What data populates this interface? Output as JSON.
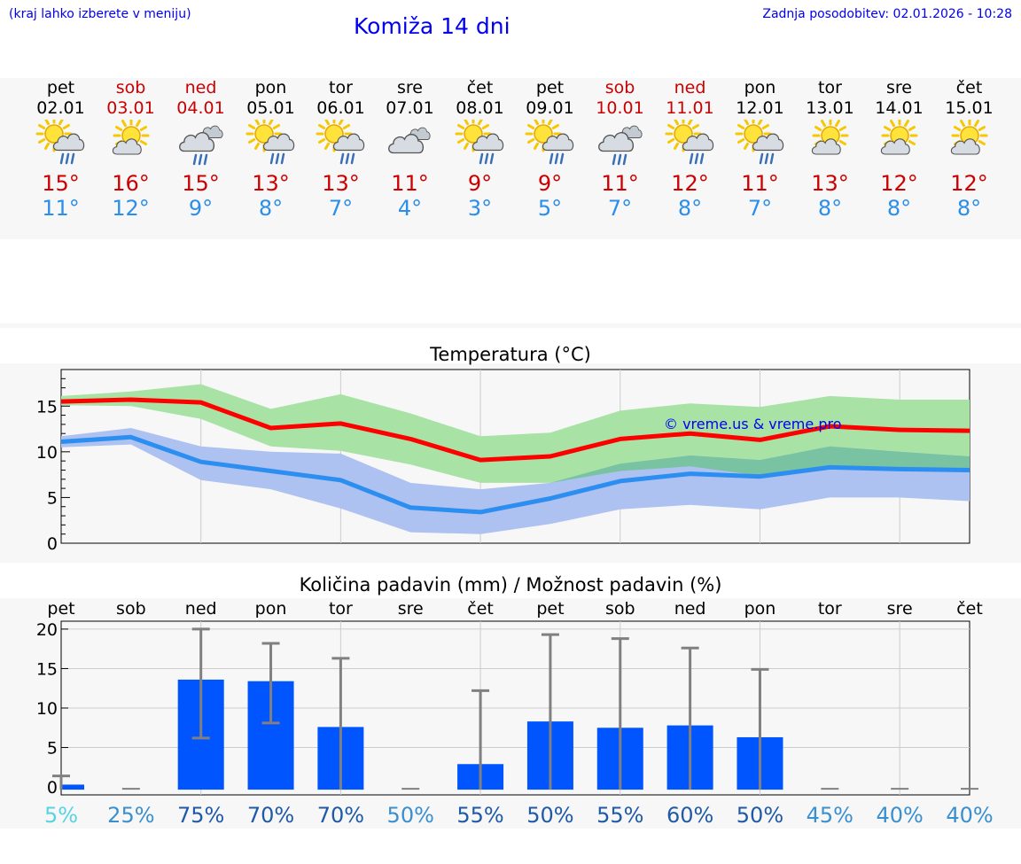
{
  "header": {
    "hint": "(kraj lahko izberete v meniju)",
    "title": "Komiža 14 dni",
    "updated": "Zadnja posodobitev: 02.01.2026 - 10:28"
  },
  "days": [
    {
      "name": "pet",
      "date": "02.01",
      "weekend": false,
      "icon": "sun-cloud-rain-icon",
      "tmax": "15°",
      "tmin": "11°"
    },
    {
      "name": "sob",
      "date": "03.01",
      "weekend": true,
      "icon": "sun-cloud-icon",
      "tmax": "16°",
      "tmin": "12°"
    },
    {
      "name": "ned",
      "date": "04.01",
      "weekend": true,
      "icon": "cloud-rain-icon",
      "tmax": "15°",
      "tmin": "9°"
    },
    {
      "name": "pon",
      "date": "05.01",
      "weekend": false,
      "icon": "sun-cloud-rain-icon",
      "tmax": "13°",
      "tmin": "8°"
    },
    {
      "name": "tor",
      "date": "06.01",
      "weekend": false,
      "icon": "sun-cloud-rain-icon",
      "tmax": "13°",
      "tmin": "7°"
    },
    {
      "name": "sre",
      "date": "07.01",
      "weekend": false,
      "icon": "cloud-icon",
      "tmax": "11°",
      "tmin": "4°"
    },
    {
      "name": "čet",
      "date": "08.01",
      "weekend": false,
      "icon": "sun-cloud-rain-icon",
      "tmax": "9°",
      "tmin": "3°"
    },
    {
      "name": "pet",
      "date": "09.01",
      "weekend": false,
      "icon": "sun-cloud-rain-icon",
      "tmax": "9°",
      "tmin": "5°"
    },
    {
      "name": "sob",
      "date": "10.01",
      "weekend": true,
      "icon": "cloud-rain-icon",
      "tmax": "11°",
      "tmin": "7°"
    },
    {
      "name": "ned",
      "date": "11.01",
      "weekend": true,
      "icon": "sun-cloud-rain-icon",
      "tmax": "12°",
      "tmin": "8°"
    },
    {
      "name": "pon",
      "date": "12.01",
      "weekend": false,
      "icon": "sun-cloud-rain-icon",
      "tmax": "11°",
      "tmin": "7°"
    },
    {
      "name": "tor",
      "date": "13.01",
      "weekend": false,
      "icon": "sun-cloud-icon",
      "tmax": "13°",
      "tmin": "8°"
    },
    {
      "name": "sre",
      "date": "14.01",
      "weekend": false,
      "icon": "sun-cloud-icon",
      "tmax": "12°",
      "tmin": "8°"
    },
    {
      "name": "čet",
      "date": "15.01",
      "weekend": false,
      "icon": "sun-cloud-icon",
      "tmax": "12°",
      "tmin": "8°"
    }
  ],
  "colors": {
    "max_line": "#ff0000",
    "min_line": "#2b8ef0",
    "max_band": "#a8e3a5",
    "min_band": "#adc2f0",
    "overlap_band": "#79c2a2",
    "bar": "#0055ff",
    "whisker": "#808080",
    "grid": "#cccccc"
  },
  "chart_data": [
    {
      "type": "line",
      "title": "Temperatura (°C)",
      "watermark": "© vreme.us & vreme.pro",
      "x": [
        0,
        1,
        2,
        3,
        4,
        5,
        6,
        7,
        8,
        9,
        10,
        11,
        12,
        13
      ],
      "ylim": [
        0,
        19
      ],
      "yticks": [
        0,
        5,
        10,
        15
      ],
      "series": [
        {
          "name": "max",
          "values": [
            15.5,
            15.7,
            15.4,
            12.6,
            13.1,
            11.4,
            9.1,
            9.5,
            11.4,
            12.0,
            11.3,
            12.8,
            12.4,
            12.3
          ],
          "band_low": [
            15.1,
            15.0,
            13.6,
            10.6,
            10.1,
            8.6,
            6.6,
            6.6,
            7.9,
            8.4,
            7.4,
            8.4,
            8.1,
            8.0
          ],
          "band_high": [
            16.1,
            16.6,
            17.4,
            14.7,
            16.3,
            14.2,
            11.7,
            12.1,
            14.5,
            15.3,
            14.9,
            16.1,
            15.7,
            15.7
          ]
        },
        {
          "name": "min",
          "values": [
            11.1,
            11.6,
            8.9,
            7.9,
            6.9,
            3.9,
            3.4,
            4.9,
            6.8,
            7.6,
            7.3,
            8.3,
            8.1,
            8.0
          ],
          "band_low": [
            10.5,
            10.8,
            6.9,
            5.9,
            3.8,
            1.2,
            1.0,
            2.1,
            3.7,
            4.2,
            3.7,
            5.0,
            5.0,
            4.6
          ],
          "band_high": [
            11.7,
            12.6,
            10.6,
            10.0,
            9.8,
            6.6,
            5.9,
            6.6,
            8.7,
            9.6,
            9.1,
            10.6,
            10.0,
            9.5
          ]
        }
      ]
    },
    {
      "type": "bar",
      "title": "Količina padavin (mm) / Možnost padavin (%)",
      "categories": [
        "pet",
        "sob",
        "ned",
        "pon",
        "tor",
        "sre",
        "čet",
        "pet",
        "sob",
        "ned",
        "pon",
        "tor",
        "sre",
        "čet"
      ],
      "values": [
        0.3,
        0,
        13.6,
        13.4,
        7.6,
        0,
        2.9,
        8.3,
        7.5,
        7.8,
        6.3,
        0,
        0,
        0
      ],
      "err_low": [
        0,
        0,
        6.2,
        8.1,
        0,
        0,
        0,
        0,
        0,
        0,
        0,
        0,
        0,
        0
      ],
      "err_high": [
        1.4,
        0,
        20.0,
        18.2,
        16.3,
        0,
        12.2,
        19.3,
        18.8,
        17.6,
        14.9,
        0,
        0,
        0
      ],
      "ylim": [
        -1,
        21
      ],
      "yticks": [
        0,
        5,
        10,
        15,
        20
      ],
      "probabilities": [
        "5%",
        "25%",
        "75%",
        "70%",
        "70%",
        "50%",
        "55%",
        "50%",
        "55%",
        "60%",
        "50%",
        "45%",
        "40%",
        "40%"
      ],
      "probability_colors": [
        "#57d3e3",
        "#3a8fcf",
        "#1f5aa8",
        "#1f5aa8",
        "#1f5aa8",
        "#3a8fcf",
        "#1f5aa8",
        "#1f5aa8",
        "#1f5aa8",
        "#1f5aa8",
        "#1f5aa8",
        "#3a8fcf",
        "#3a8fcf",
        "#3a8fcf"
      ]
    }
  ]
}
